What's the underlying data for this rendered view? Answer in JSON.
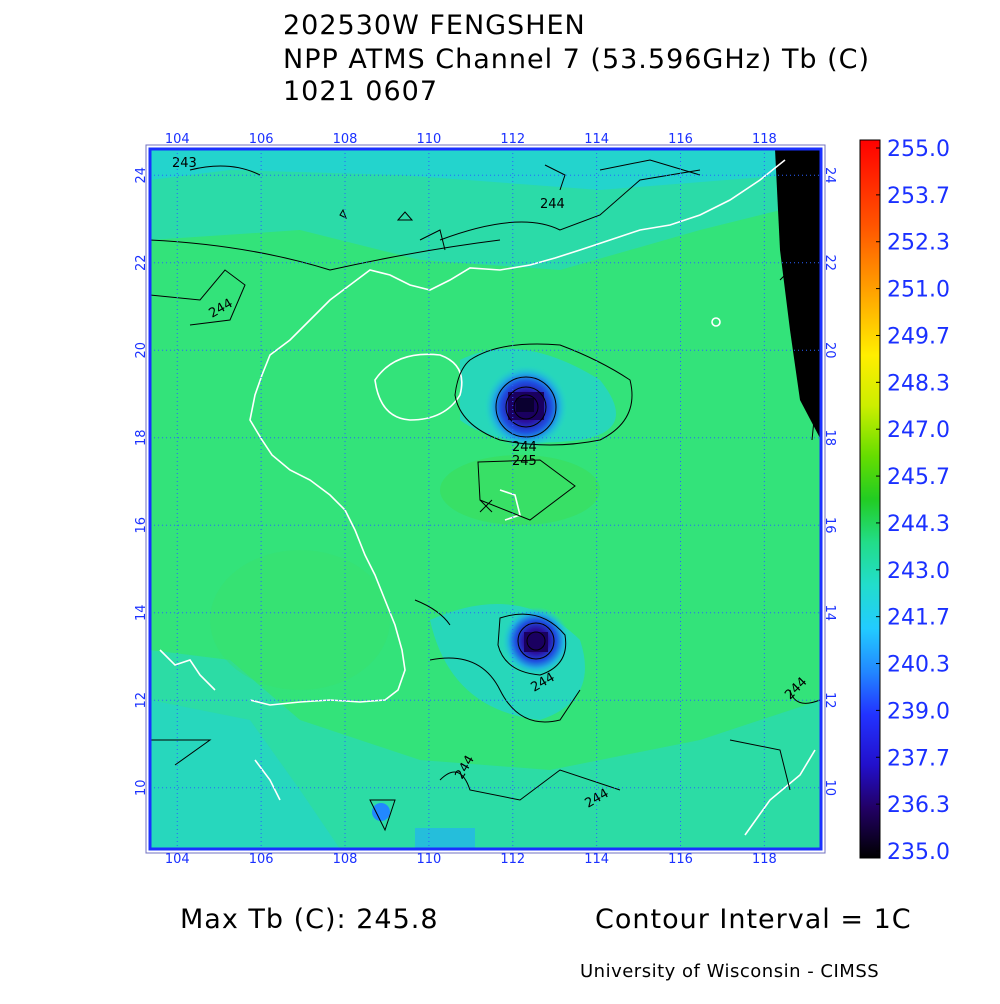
{
  "header": {
    "line1": "202530W FENGSHEN",
    "line2": "NPP ATMS Channel 7 (53.596GHz) Tb (C)",
    "line3": "1021 0607"
  },
  "map": {
    "lon_ticks": [
      "104",
      "106",
      "108",
      "110",
      "112",
      "114",
      "116",
      "118"
    ],
    "lat_ticks": [
      "24",
      "22",
      "20",
      "18",
      "16",
      "14",
      "12",
      "10"
    ],
    "contour_labels": [
      "244",
      "244",
      "244",
      "245",
      "244",
      "244",
      "244",
      "244",
      "243"
    ],
    "colors": {
      "background_field": "#33e37a",
      "cold_core": "#1a0060",
      "cyan_region": "#22d6c8",
      "coastline": "#ffffff",
      "frame": "#1a30ff",
      "grid": "#2a60ff",
      "no_data": "#000000"
    }
  },
  "colorbar": {
    "labels": [
      "255.0",
      "253.7",
      "252.3",
      "251.0",
      "249.7",
      "248.3",
      "247.0",
      "245.7",
      "244.3",
      "243.0",
      "241.7",
      "240.3",
      "239.0",
      "237.7",
      "236.3",
      "235.0"
    ],
    "range": [
      235.0,
      255.0
    ]
  },
  "footer": {
    "max_tb": "Max Tb (C): 245.8",
    "contour_interval": "Contour Interval = 1C",
    "credit": "University of Wisconsin - CIMSS"
  }
}
